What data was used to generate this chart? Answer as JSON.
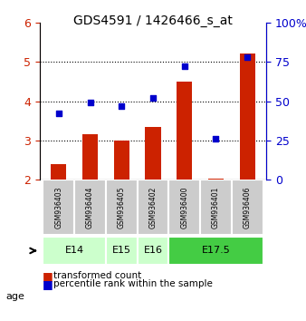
{
  "title": "GDS4591 / 1426466_s_at",
  "samples": [
    "GSM936403",
    "GSM936404",
    "GSM936405",
    "GSM936402",
    "GSM936400",
    "GSM936401",
    "GSM936406"
  ],
  "bar_values": [
    2.4,
    3.15,
    3.0,
    3.35,
    4.5,
    2.02,
    5.2
  ],
  "percentile_values": [
    42,
    49,
    47,
    52,
    72,
    26,
    78
  ],
  "ylim_left": [
    2,
    6
  ],
  "ylim_right": [
    0,
    100
  ],
  "yticks_left": [
    2,
    3,
    4,
    5,
    6
  ],
  "yticks_right": [
    0,
    25,
    50,
    75,
    100
  ],
  "yticklabels_right": [
    "0",
    "25",
    "50",
    "75",
    "100%"
  ],
  "bar_color": "#cc2200",
  "scatter_color": "#0000cc",
  "age_groups": [
    {
      "label": "E14",
      "indices": [
        0,
        1
      ],
      "color": "#ccffcc"
    },
    {
      "label": "E15",
      "indices": [
        2
      ],
      "color": "#ccffcc"
    },
    {
      "label": "E16",
      "indices": [
        3
      ],
      "color": "#ccffcc"
    },
    {
      "label": "E17.5",
      "indices": [
        4,
        5,
        6
      ],
      "color": "#44cc44"
    }
  ],
  "age_label": "age",
  "legend_items": [
    {
      "color": "#cc2200",
      "label": "transformed count"
    },
    {
      "color": "#0000cc",
      "label": "percentile rank within the sample"
    }
  ],
  "grid_color": "#000000",
  "bar_bottom": 2.0,
  "bar_width": 0.5,
  "sample_panel_color": "#cccccc",
  "age_panel_e14_color": "#ccffcc",
  "age_panel_e175_color": "#44cc44"
}
